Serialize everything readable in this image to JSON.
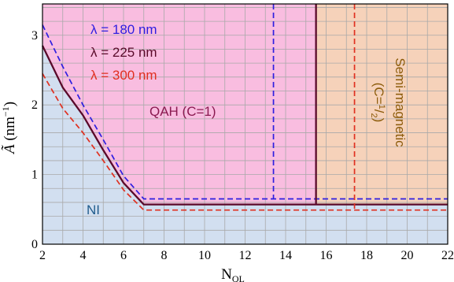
{
  "chart_data": {
    "type": "line",
    "xlabel": {
      "main": "N",
      "sub": "QL"
    },
    "ylabel": {
      "main": "Ã",
      "unit_open": " (nm",
      "unit_exp": "−1",
      "unit_close": ")"
    },
    "xlim": [
      2,
      22
    ],
    "ylim": [
      0,
      3.45
    ],
    "x_ticks": [
      2,
      4,
      6,
      8,
      10,
      12,
      14,
      16,
      18,
      20,
      22
    ],
    "y_ticks": [
      0,
      1,
      2,
      3
    ],
    "x_minor_step": 1,
    "y_minor_step": 0.2,
    "grid": true,
    "legend_placement": "top-left",
    "colors": {
      "ni_region": "#d2dff0",
      "qah_region": "#f9bde0",
      "semi_region": "#f6d2ba",
      "grid": "#a9a9a9",
      "qah_text": "#8a1a50",
      "ni_text": "#1f5b8c",
      "semi_text": "#8c5b0a"
    },
    "series": [
      {
        "name": "λ = 180 nm",
        "color": "#2e1ee0",
        "dash": true,
        "x": [
          2,
          3,
          4,
          5,
          6,
          7,
          13.4,
          22
        ],
        "y": [
          3.15,
          2.55,
          2.0,
          1.5,
          0.98,
          0.65,
          0.65,
          0.65
        ],
        "boundary_x": 13.4
      },
      {
        "name": "λ = 225 nm",
        "color": "#5a0a2a",
        "dash": false,
        "x": [
          2,
          3,
          4,
          5,
          6,
          7,
          15.5,
          22
        ],
        "y": [
          2.85,
          2.25,
          1.85,
          1.35,
          0.88,
          0.57,
          0.57,
          0.57
        ],
        "boundary_x": 15.5
      },
      {
        "name": "λ = 300 nm",
        "color": "#e03020",
        "dash": true,
        "x": [
          2,
          3,
          4,
          5,
          6,
          7,
          17.4,
          22
        ],
        "y": [
          2.45,
          1.95,
          1.6,
          1.2,
          0.78,
          0.49,
          0.49,
          0.49
        ],
        "boundary_x": 17.4
      }
    ],
    "regions": {
      "qah": "QAH (C=1)",
      "ni": "NI",
      "semi_line1": "Semi-magnetic",
      "semi_line2_open": "(C=",
      "semi_frac_num": "1",
      "semi_frac_den": "2",
      "semi_line2_close": ")"
    }
  }
}
